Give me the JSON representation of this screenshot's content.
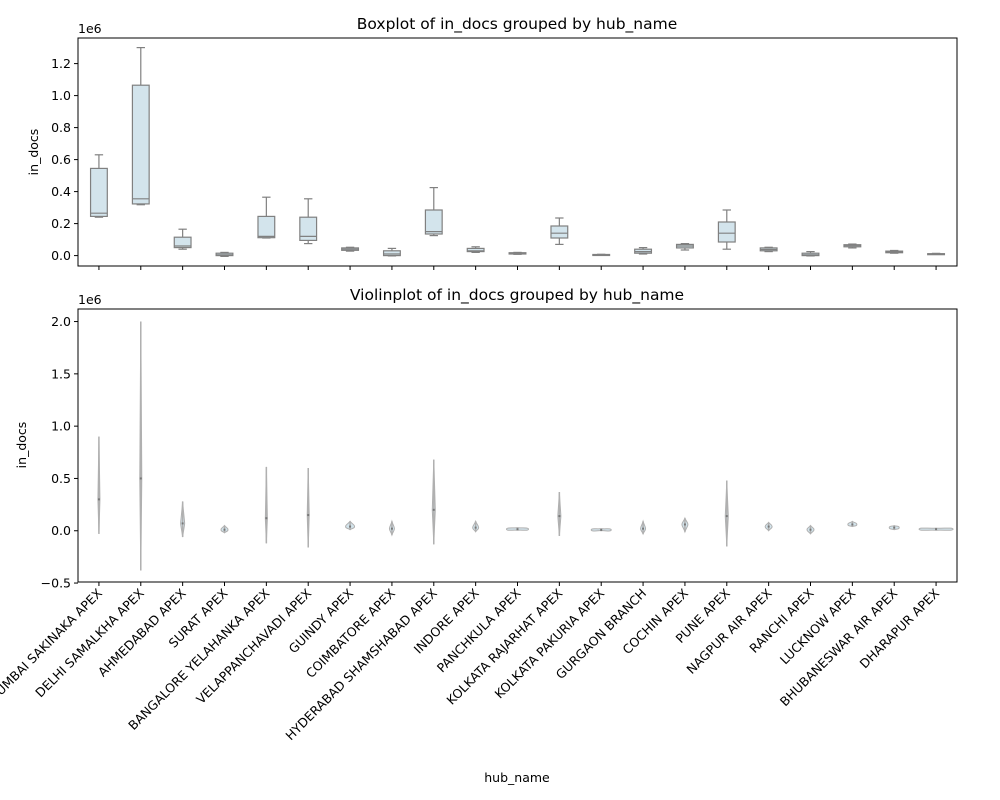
{
  "chart_data": [
    {
      "type": "boxplot",
      "title": "Boxplot of in_docs grouped by hub_name",
      "ylabel": "in_docs",
      "scale_label": "1e6",
      "ylim": [
        -65000,
        1360000
      ],
      "yticks": [
        0.0,
        0.2,
        0.4,
        0.6,
        0.8,
        1.0,
        1.2
      ],
      "box_color": "#d3e4ec",
      "line_color": "#808080",
      "categories": [
        "MUMBAI SAKINAKA APEX",
        "DELHI SAMALKHA APEX",
        "AHMEDABAD APEX",
        "SURAT APEX",
        "BANGALORE YELAHANKA APEX",
        "VELAPPANCHAVADI APEX",
        "GUINDY APEX",
        "COIMBATORE APEX",
        "HYDERABAD SHAMSHABAD APEX",
        "INDORE APEX",
        "PANCHKULA APEX",
        "KOLKATA RAJARHAT APEX",
        "KOLKATA PAKURIA APEX",
        "GURGAON BRANCH",
        "COCHIN APEX",
        "PUNE APEX",
        "NAGPUR AIR APEX",
        "RANCHI APEX",
        "LUCKNOW APEX",
        "BHUBANESWAR AIR APEX",
        "DHARAPUR APEX"
      ],
      "boxes": [
        {
          "low": 240000,
          "q1": 245000,
          "median": 265000,
          "q3": 545000,
          "high": 630000
        },
        {
          "low": 318000,
          "q1": 323000,
          "median": 355000,
          "q3": 1065000,
          "high": 1300000
        },
        {
          "low": 40000,
          "q1": 50000,
          "median": 60000,
          "q3": 115000,
          "high": 165000
        },
        {
          "low": -5000,
          "q1": 0,
          "median": 5000,
          "q3": 15000,
          "high": 20000
        },
        {
          "low": 110000,
          "q1": 112000,
          "median": 120000,
          "q3": 245000,
          "high": 365000
        },
        {
          "low": 75000,
          "q1": 95000,
          "median": 120000,
          "q3": 240000,
          "high": 355000
        },
        {
          "low": 28000,
          "q1": 33000,
          "median": 40000,
          "q3": 48000,
          "high": 52000
        },
        {
          "low": -2000,
          "q1": 0,
          "median": 10000,
          "q3": 30000,
          "high": 45000
        },
        {
          "low": 125000,
          "q1": 135000,
          "median": 150000,
          "q3": 285000,
          "high": 425000
        },
        {
          "low": 20000,
          "q1": 25000,
          "median": 30000,
          "q3": 45000,
          "high": 55000
        },
        {
          "low": 8000,
          "q1": 10000,
          "median": 12000,
          "q3": 18000,
          "high": 20000
        },
        {
          "low": 70000,
          "q1": 110000,
          "median": 140000,
          "q3": 185000,
          "high": 235000
        },
        {
          "low": 3000,
          "q1": 4000,
          "median": 5000,
          "q3": 7000,
          "high": 8000
        },
        {
          "low": 10000,
          "q1": 15000,
          "median": 25000,
          "q3": 40000,
          "high": 50000
        },
        {
          "low": 35000,
          "q1": 48000,
          "median": 60000,
          "q3": 70000,
          "high": 75000
        },
        {
          "low": 40000,
          "q1": 85000,
          "median": 140000,
          "q3": 210000,
          "high": 285000
        },
        {
          "low": 25000,
          "q1": 30000,
          "median": 38000,
          "q3": 48000,
          "high": 52000
        },
        {
          "low": -2000,
          "q1": 0,
          "median": 5000,
          "q3": 15000,
          "high": 25000
        },
        {
          "low": 48000,
          "q1": 55000,
          "median": 62000,
          "q3": 68000,
          "high": 72000
        },
        {
          "low": 15000,
          "q1": 18000,
          "median": 22000,
          "q3": 28000,
          "high": 32000
        },
        {
          "low": 8000,
          "q1": 9000,
          "median": 10000,
          "q3": 12000,
          "high": 14000
        }
      ]
    },
    {
      "type": "violin",
      "title": "Violinplot of in_docs grouped by hub_name",
      "xlabel": "hub_name",
      "ylabel": "in_docs",
      "scale_label": "1e6",
      "ylim": [
        -0.49,
        2.12
      ],
      "yticks": [
        -0.5,
        0.0,
        0.5,
        1.0,
        1.5,
        2.0
      ],
      "line_color": "#b0b0b0",
      "violins": [
        {
          "min": -0.03,
          "max": 0.9,
          "center": 0.3,
          "width": 2
        },
        {
          "min": -0.38,
          "max": 2.0,
          "center": 0.5,
          "width": 2
        },
        {
          "min": -0.06,
          "max": 0.28,
          "center": 0.07,
          "width": 4
        },
        {
          "min": -0.02,
          "max": 0.05,
          "center": 0.01,
          "width": 7
        },
        {
          "min": -0.12,
          "max": 0.61,
          "center": 0.12,
          "width": 2
        },
        {
          "min": -0.16,
          "max": 0.6,
          "center": 0.15,
          "width": 2
        },
        {
          "min": 0.01,
          "max": 0.09,
          "center": 0.04,
          "width": 9
        },
        {
          "min": -0.04,
          "max": 0.09,
          "center": 0.02,
          "width": 5
        },
        {
          "min": -0.13,
          "max": 0.68,
          "center": 0.2,
          "width": 3
        },
        {
          "min": -0.01,
          "max": 0.09,
          "center": 0.03,
          "width": 6
        },
        {
          "min": 0.005,
          "max": 0.03,
          "center": 0.015,
          "width": 22
        },
        {
          "min": -0.05,
          "max": 0.37,
          "center": 0.14,
          "width": 3
        },
        {
          "min": 0.0,
          "max": 0.02,
          "center": 0.008,
          "width": 20
        },
        {
          "min": -0.03,
          "max": 0.09,
          "center": 0.02,
          "width": 5
        },
        {
          "min": -0.01,
          "max": 0.12,
          "center": 0.06,
          "width": 6
        },
        {
          "min": -0.15,
          "max": 0.48,
          "center": 0.14,
          "width": 3
        },
        {
          "min": 0.0,
          "max": 0.08,
          "center": 0.04,
          "width": 7
        },
        {
          "min": -0.03,
          "max": 0.05,
          "center": 0.01,
          "width": 7
        },
        {
          "min": 0.04,
          "max": 0.09,
          "center": 0.06,
          "width": 9
        },
        {
          "min": 0.01,
          "max": 0.05,
          "center": 0.03,
          "width": 10
        },
        {
          "min": 0.005,
          "max": 0.025,
          "center": 0.015,
          "width": 34
        }
      ]
    }
  ]
}
